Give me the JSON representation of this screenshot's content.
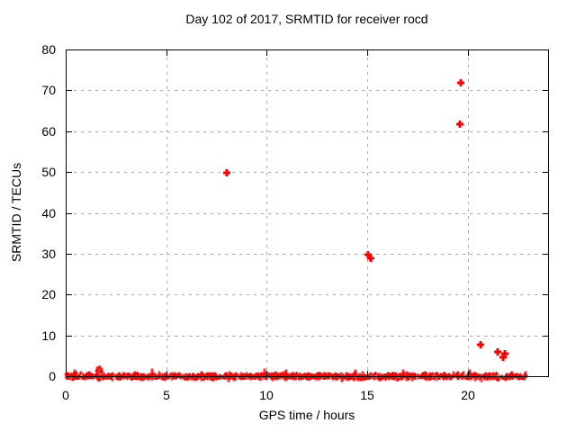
{
  "chart_data": {
    "type": "scatter",
    "title": "Day 102 of 2017, SRMTID for receiver rocd",
    "xlabel": "GPS time / hours",
    "ylabel": "SRMTID / TECUs",
    "xlim": [
      0,
      24
    ],
    "ylim": [
      0,
      80
    ],
    "xticks": [
      0,
      5,
      10,
      15,
      20
    ],
    "yticks": [
      0,
      10,
      20,
      30,
      40,
      50,
      60,
      70,
      80
    ],
    "grid": "dotted",
    "legend": "none",
    "marker": "plus",
    "series": [
      {
        "name": "SRMTID outlier points",
        "color": "#ff0000",
        "points": [
          [
            8.0,
            49.8
          ],
          [
            15.05,
            29.8
          ],
          [
            15.2,
            28.9
          ],
          [
            19.62,
            61.8
          ],
          [
            19.66,
            71.8
          ],
          [
            20.65,
            7.8
          ],
          [
            21.5,
            6.0
          ],
          [
            21.85,
            5.6
          ],
          [
            21.77,
            4.6
          ]
        ]
      }
    ],
    "baseline_band": {
      "description": "dense noise band of SRMTID values near 0 TECUs across the whole day",
      "x_start": 0.0,
      "x_end": 22.95,
      "y_center": 0,
      "y_spread": 1.1,
      "point_count": 1700,
      "seed": 1337,
      "spikes": [
        [
          0.45,
          1.4
        ],
        [
          1.55,
          1.9
        ],
        [
          1.65,
          2.3
        ],
        [
          1.72,
          2.1
        ],
        [
          1.8,
          1.8
        ],
        [
          4.3,
          1.5
        ],
        [
          9.9,
          1.5
        ],
        [
          10.95,
          1.4
        ],
        [
          14.4,
          1.3
        ],
        [
          16.8,
          1.3
        ],
        [
          20.1,
          1.4
        ]
      ]
    },
    "colors": {
      "marker": "#ff0000",
      "grid": "#a8a8a8",
      "axis": "#000000",
      "background": "#ffffff"
    }
  }
}
